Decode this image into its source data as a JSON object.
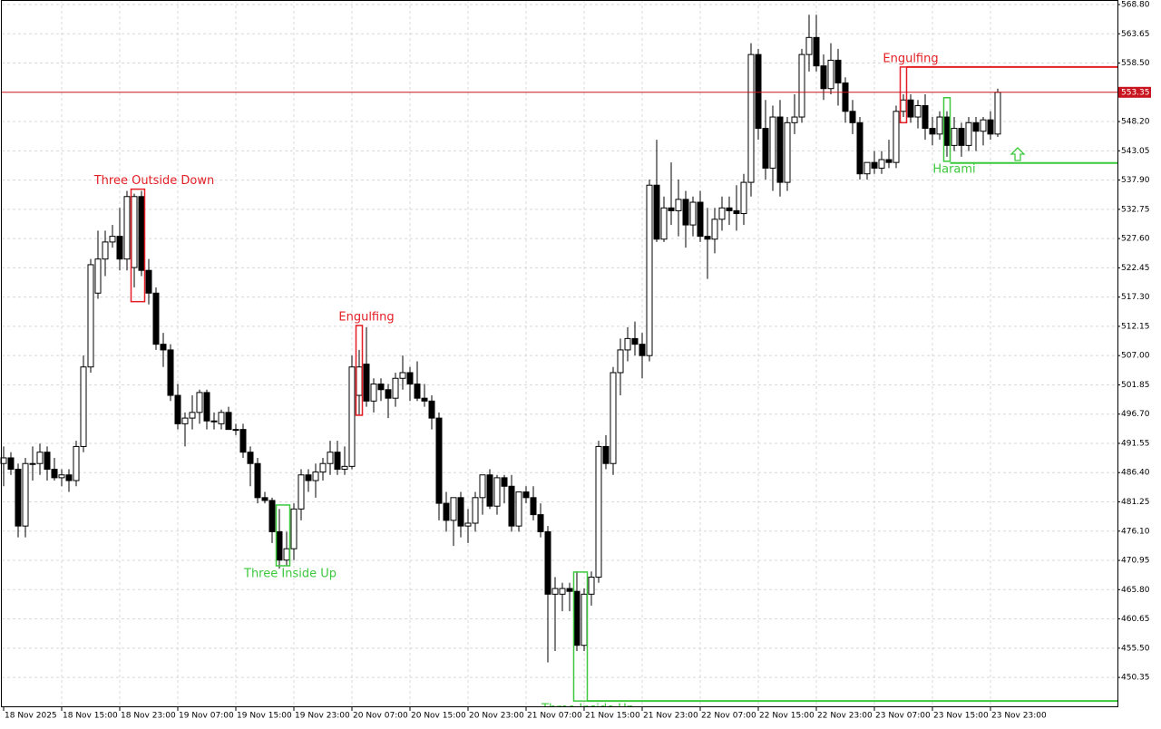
{
  "chart_data": {
    "type": "candlestick",
    "categories": [
      "18 Nov 2025",
      null,
      null,
      null,
      null,
      null,
      null,
      null,
      "18 Nov 15:00",
      null,
      null,
      null,
      null,
      null,
      null,
      null,
      "18 Nov 23:00",
      null,
      null,
      null,
      null,
      null,
      null,
      null,
      "19 Nov 07:00",
      null,
      null,
      null,
      null,
      null,
      null,
      null,
      "19 Nov 15:00",
      null,
      null,
      null,
      null,
      null,
      null,
      null,
      "19 Nov 23:00",
      null,
      null,
      null,
      null,
      null,
      null,
      null,
      "20 Nov 07:00",
      null,
      null,
      null,
      null,
      null,
      null,
      null,
      "20 Nov 15:00",
      null,
      null,
      null,
      null,
      null,
      null,
      null,
      "20 Nov 23:00",
      null,
      null,
      null,
      null,
      null,
      null,
      null,
      "21 Nov 07:00",
      null,
      null,
      null,
      null,
      null,
      null,
      null,
      "21 Nov 15:00",
      null,
      null,
      null,
      null,
      null,
      null,
      null,
      "21 Nov 23:00",
      null,
      null,
      null,
      null,
      null,
      null,
      null,
      "22 Nov 07:00",
      null,
      null,
      null,
      null,
      null,
      null,
      null,
      "22 Nov 15:00",
      null,
      null,
      null,
      null,
      null,
      null,
      null,
      "22 Nov 23:00",
      null,
      null,
      null,
      null,
      null,
      null,
      null,
      "23 Nov 07:00",
      null,
      null,
      null,
      null,
      null,
      null,
      null,
      "23 Nov 15:00",
      null,
      null,
      null,
      null,
      null,
      null,
      null,
      "23 Nov 23:00",
      null
    ],
    "open": [
      488,
      489,
      487,
      477,
      488,
      488,
      490,
      487,
      485.5,
      486,
      485,
      491,
      505,
      518,
      524,
      527,
      528,
      524,
      522.5,
      535,
      522,
      518,
      509,
      508,
      500,
      495,
      496,
      497,
      500.5,
      495.5,
      495,
      497,
      494,
      494,
      490,
      488,
      482,
      481.5,
      476,
      471,
      473,
      480,
      486,
      485,
      486.5,
      488,
      490,
      487,
      487.5,
      500,
      505.5,
      499,
      502,
      501,
      499.5,
      503,
      504,
      502,
      499.5,
      499,
      496,
      481,
      478,
      482,
      477,
      477.5,
      482,
      486,
      480.5,
      485.5,
      484,
      477,
      483,
      482,
      479,
      476,
      465,
      465,
      466,
      465.5,
      456,
      465,
      468,
      491,
      488,
      504,
      508,
      510,
      509,
      507,
      537,
      527.5,
      533,
      532.5,
      534.5,
      530,
      534,
      528,
      527.5,
      531,
      533,
      532.5,
      532,
      537.5,
      560,
      547,
      540,
      549,
      537.5,
      548,
      549,
      560,
      563,
      558,
      554,
      559,
      555,
      550,
      548,
      539,
      541,
      540,
      541.5,
      541,
      550,
      552,
      549,
      551,
      547,
      546,
      549,
      544,
      547,
      544,
      548,
      546.5,
      548.5,
      546
    ],
    "high": [
      491,
      490,
      488,
      489,
      491,
      491.5,
      491,
      489,
      487,
      487,
      492,
      507,
      524,
      529,
      529,
      530,
      533,
      536,
      535.5,
      536,
      524,
      519,
      511,
      509,
      502,
      497,
      500,
      501,
      501,
      497,
      497.5,
      498,
      495,
      495,
      491,
      489,
      483,
      482,
      480,
      476,
      481,
      487,
      487,
      488,
      489,
      492,
      492,
      491,
      507,
      508,
      512,
      503,
      503,
      502,
      504,
      507,
      505,
      506,
      502,
      500,
      497,
      483,
      482,
      483,
      480,
      483,
      486,
      487,
      486,
      486,
      486,
      483,
      484,
      484,
      481,
      477,
      468,
      467,
      467,
      469,
      466,
      469,
      492,
      493,
      505,
      510,
      512,
      513,
      511,
      538,
      545,
      535,
      541,
      538,
      536,
      535,
      536,
      533,
      533,
      535,
      535,
      537,
      539,
      562,
      561,
      552,
      551,
      552,
      549,
      553,
      561,
      567,
      567,
      560,
      562,
      561,
      556,
      552,
      549,
      541,
      543,
      543,
      545,
      551,
      553,
      553,
      552,
      553,
      549,
      550,
      550,
      549,
      548,
      549,
      549,
      549,
      550,
      554
    ],
    "low": [
      484,
      486,
      475,
      475,
      485,
      486,
      485,
      485,
      484,
      483,
      484,
      490,
      504,
      517,
      521,
      526,
      522,
      522,
      519,
      521,
      516,
      508,
      505,
      499,
      494,
      491,
      494,
      495,
      494,
      494,
      494,
      494,
      493,
      489,
      484,
      481,
      481,
      474,
      469.5,
      470,
      471,
      478,
      483,
      482,
      485,
      486,
      486,
      486,
      487,
      496.5,
      498,
      497,
      499,
      496,
      498,
      501,
      499,
      499,
      498,
      494,
      478,
      476,
      473.5,
      475,
      474,
      476,
      479,
      480,
      479,
      481,
      476,
      476,
      481,
      478,
      475,
      453,
      455,
      462,
      462,
      455,
      455,
      463,
      467,
      487,
      486,
      500,
      506,
      507,
      503,
      506,
      527,
      527,
      530,
      528,
      526,
      528,
      527,
      520.5,
      525,
      529,
      530,
      529,
      530,
      535,
      545,
      538,
      536,
      535,
      536,
      546,
      548,
      557,
      557,
      552,
      553,
      551,
      548,
      546,
      538,
      538,
      539,
      539,
      540,
      540,
      549,
      548,
      547,
      545,
      544,
      545,
      542,
      543,
      542,
      543,
      543,
      544,
      545,
      545.5
    ],
    "close": [
      489,
      487,
      477,
      488,
      488,
      490,
      487,
      485.5,
      486,
      485,
      491,
      505,
      523,
      524,
      527,
      528,
      524,
      535,
      535,
      522,
      518,
      509,
      508,
      500,
      495,
      496,
      497,
      500.5,
      495.5,
      495.5,
      497,
      494,
      494,
      490,
      488,
      482,
      481.5,
      476,
      471,
      473,
      480,
      486,
      485,
      486.5,
      488,
      490,
      487,
      487.5,
      505,
      505,
      499,
      502,
      501,
      499.5,
      503,
      504,
      502,
      499.5,
      499,
      496,
      481,
      478,
      482,
      477,
      477.5,
      482,
      486,
      480.5,
      485.5,
      484,
      477,
      483,
      482,
      479,
      476,
      465,
      466,
      466,
      465.5,
      456,
      465,
      468,
      491,
      488,
      504,
      508,
      510,
      509,
      507,
      537,
      527.5,
      533,
      532.5,
      534.5,
      530,
      534,
      528,
      527.5,
      531,
      533,
      532.5,
      532,
      537.5,
      560,
      547,
      540,
      549,
      537.5,
      548,
      549,
      560,
      563,
      558,
      554,
      559,
      555,
      550,
      548,
      539,
      541,
      540,
      541.5,
      541,
      550,
      552,
      549,
      551,
      547,
      546,
      549,
      544,
      547,
      544,
      548,
      546.5,
      548.5,
      546,
      553.35
    ],
    "up_color": "#ffffff",
    "down_color": "#000000",
    "current_price": 553.35,
    "current_price_color": "#c8141e",
    "ylim": [
      445.1,
      568.8
    ],
    "yticks": [
      {
        "value": 568.8,
        "label": "568.80"
      },
      {
        "value": 563.65,
        "label": "563.65"
      },
      {
        "value": 558.5,
        "label": "558.50"
      },
      {
        "value": 548.2,
        "label": "548.20"
      },
      {
        "value": 543.05,
        "label": "543.05"
      },
      {
        "value": 537.9,
        "label": "537.90"
      },
      {
        "value": 532.75,
        "label": "532.75"
      },
      {
        "value": 527.6,
        "label": "527.60"
      },
      {
        "value": 522.45,
        "label": "522.45"
      },
      {
        "value": 517.3,
        "label": "517.30"
      },
      {
        "value": 512.15,
        "label": "512.15"
      },
      {
        "value": 507,
        "label": "507.00"
      },
      {
        "value": 501.85,
        "label": "501.85"
      },
      {
        "value": 496.7,
        "label": "496.70"
      },
      {
        "value": 491.55,
        "label": "491.55"
      },
      {
        "value": 486.4,
        "label": "486.40"
      },
      {
        "value": 481.25,
        "label": "481.25"
      },
      {
        "value": 476.1,
        "label": "476.10"
      },
      {
        "value": 470.95,
        "label": "470.95"
      },
      {
        "value": 465.8,
        "label": "465.80"
      },
      {
        "value": 460.65,
        "label": "460.65"
      },
      {
        "value": 455.5,
        "label": "455.50"
      },
      {
        "value": 450.35,
        "label": "450.35"
      }
    ],
    "grid": true,
    "patterns": [
      {
        "label": "Three Outside Down",
        "color": "#e31e24",
        "top": 536.3,
        "bottom": 516.5
      },
      {
        "label": "Three Inside Up",
        "color": "#3cc83c",
        "top": 480.7,
        "bottom": 470.0
      },
      {
        "label": "Engulfing",
        "color": "#e31e24",
        "top": 512.3,
        "bottom": 496.5
      },
      {
        "label": "Three Inside Up",
        "color": "#3cc83c",
        "top": 468.9,
        "bottom": 446.2,
        "level": 446.2
      },
      {
        "label": "Engulfing",
        "color": "#e31e24",
        "top": 557.8,
        "bottom": 548.0,
        "level": 557.8
      },
      {
        "label": "Harami",
        "color": "#3cc83c",
        "top": 552.4,
        "bottom": 541.2,
        "level": 540.9
      }
    ]
  }
}
